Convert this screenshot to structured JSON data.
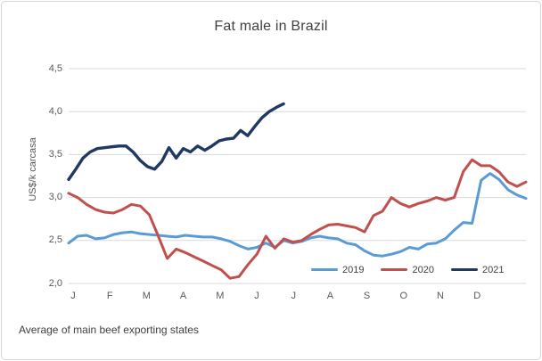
{
  "chart_data": {
    "type": "line",
    "title": "Fat male in Brazil",
    "ylabel": "US$/k carcasa",
    "xlabel": "",
    "note": "Average of main beef exporting states",
    "x_unit": "weekly points across one year",
    "x_tick_labels": [
      "J",
      "F",
      "M",
      "A",
      "M",
      "J",
      "J",
      "A",
      "S",
      "O",
      "N",
      "D"
    ],
    "y_tick_labels": [
      "2,0",
      "2,5",
      "3,0",
      "3,5",
      "4,0",
      "4,5"
    ],
    "y_tick_values": [
      2.0,
      2.5,
      3.0,
      3.5,
      4.0,
      4.5
    ],
    "ylim": [
      2.0,
      4.5
    ],
    "decimal_separator": ",",
    "grid": true,
    "gridline_color": "#d9d9d9",
    "legend_position": "inside-bottom-right",
    "series": [
      {
        "name": "2019",
        "color": "#5b9bd5",
        "line_width": 3,
        "x_span_frac": 1.0,
        "values": [
          2.47,
          2.55,
          2.56,
          2.52,
          2.53,
          2.57,
          2.59,
          2.6,
          2.58,
          2.57,
          2.56,
          2.55,
          2.54,
          2.56,
          2.55,
          2.54,
          2.54,
          2.52,
          2.49,
          2.44,
          2.4,
          2.42,
          2.47,
          2.42,
          2.5,
          2.47,
          2.49,
          2.53,
          2.55,
          2.53,
          2.52,
          2.47,
          2.45,
          2.38,
          2.33,
          2.32,
          2.34,
          2.37,
          2.42,
          2.4,
          2.46,
          2.47,
          2.52,
          2.62,
          2.71,
          2.7,
          3.2,
          3.28,
          3.21,
          3.09,
          3.03,
          2.99
        ]
      },
      {
        "name": "2020",
        "color": "#c0504d",
        "line_width": 3,
        "x_span_frac": 1.0,
        "values": [
          3.05,
          3.0,
          2.92,
          2.86,
          2.83,
          2.82,
          2.86,
          2.92,
          2.9,
          2.8,
          2.55,
          2.29,
          2.4,
          2.36,
          2.31,
          2.26,
          2.21,
          2.16,
          2.06,
          2.08,
          2.22,
          2.34,
          2.55,
          2.41,
          2.52,
          2.48,
          2.5,
          2.57,
          2.63,
          2.68,
          2.69,
          2.67,
          2.65,
          2.6,
          2.79,
          2.84,
          3.0,
          2.93,
          2.89,
          2.93,
          2.96,
          3.0,
          2.97,
          3.0,
          3.3,
          3.44,
          3.37,
          3.37,
          3.3,
          3.18,
          3.13,
          3.18
        ]
      },
      {
        "name": "2021",
        "color": "#1f3864",
        "line_width": 3.4,
        "x_span_frac": 0.47,
        "values": [
          3.21,
          3.33,
          3.46,
          3.53,
          3.57,
          3.58,
          3.59,
          3.6,
          3.6,
          3.53,
          3.43,
          3.36,
          3.33,
          3.42,
          3.58,
          3.46,
          3.57,
          3.53,
          3.6,
          3.55,
          3.6,
          3.66,
          3.68,
          3.69,
          3.78,
          3.72,
          3.83,
          3.93,
          4.0,
          4.05,
          4.09
        ]
      }
    ]
  }
}
